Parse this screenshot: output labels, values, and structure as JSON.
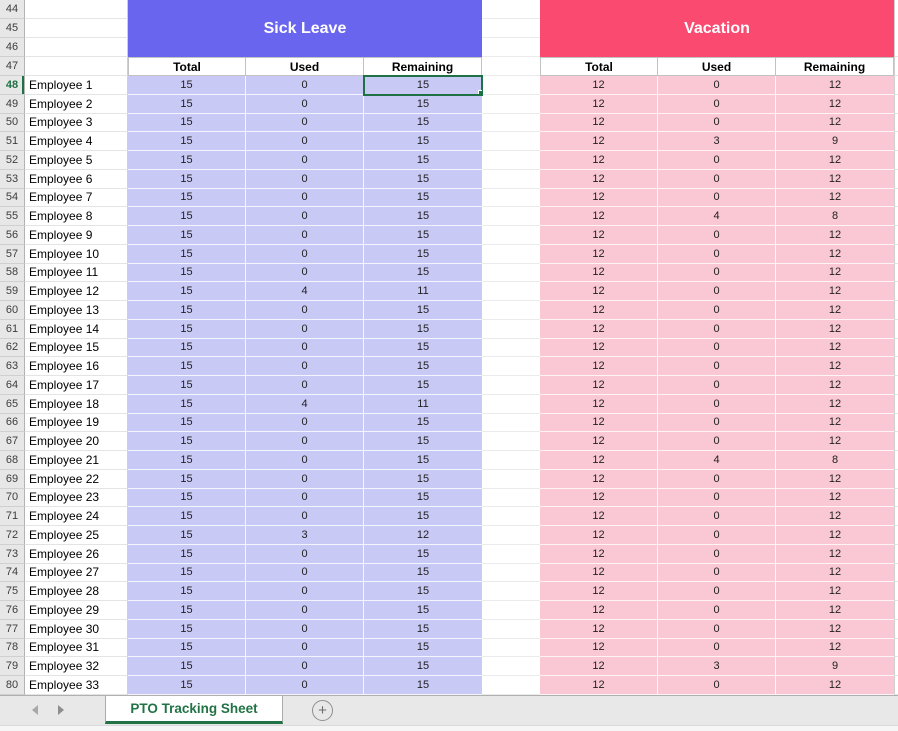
{
  "sheet": {
    "top_row_numbers": [
      "44",
      "45",
      "46"
    ],
    "header_row_number": "47",
    "sections": [
      {
        "title": "Sick Leave"
      },
      {
        "title": "Vacation"
      }
    ],
    "column_headers": [
      "Total",
      "Used",
      "Remaining"
    ],
    "selected": {
      "row_number": 48,
      "column": "sick_remaining"
    },
    "rows": [
      {
        "row_number": 48,
        "name": "Employee 1",
        "sick": [
          15,
          0,
          15
        ],
        "vacation": [
          12,
          0,
          12
        ]
      },
      {
        "row_number": 49,
        "name": "Employee 2",
        "sick": [
          15,
          0,
          15
        ],
        "vacation": [
          12,
          0,
          12
        ]
      },
      {
        "row_number": 50,
        "name": "Employee 3",
        "sick": [
          15,
          0,
          15
        ],
        "vacation": [
          12,
          0,
          12
        ]
      },
      {
        "row_number": 51,
        "name": "Employee 4",
        "sick": [
          15,
          0,
          15
        ],
        "vacation": [
          12,
          3,
          9
        ]
      },
      {
        "row_number": 52,
        "name": "Employee 5",
        "sick": [
          15,
          0,
          15
        ],
        "vacation": [
          12,
          0,
          12
        ]
      },
      {
        "row_number": 53,
        "name": "Employee 6",
        "sick": [
          15,
          0,
          15
        ],
        "vacation": [
          12,
          0,
          12
        ]
      },
      {
        "row_number": 54,
        "name": "Employee 7",
        "sick": [
          15,
          0,
          15
        ],
        "vacation": [
          12,
          0,
          12
        ]
      },
      {
        "row_number": 55,
        "name": "Employee 8",
        "sick": [
          15,
          0,
          15
        ],
        "vacation": [
          12,
          4,
          8
        ]
      },
      {
        "row_number": 56,
        "name": "Employee 9",
        "sick": [
          15,
          0,
          15
        ],
        "vacation": [
          12,
          0,
          12
        ]
      },
      {
        "row_number": 57,
        "name": "Employee 10",
        "sick": [
          15,
          0,
          15
        ],
        "vacation": [
          12,
          0,
          12
        ]
      },
      {
        "row_number": 58,
        "name": "Employee 11",
        "sick": [
          15,
          0,
          15
        ],
        "vacation": [
          12,
          0,
          12
        ]
      },
      {
        "row_number": 59,
        "name": "Employee 12",
        "sick": [
          15,
          4,
          11
        ],
        "vacation": [
          12,
          0,
          12
        ]
      },
      {
        "row_number": 60,
        "name": "Employee 13",
        "sick": [
          15,
          0,
          15
        ],
        "vacation": [
          12,
          0,
          12
        ]
      },
      {
        "row_number": 61,
        "name": "Employee 14",
        "sick": [
          15,
          0,
          15
        ],
        "vacation": [
          12,
          0,
          12
        ]
      },
      {
        "row_number": 62,
        "name": "Employee 15",
        "sick": [
          15,
          0,
          15
        ],
        "vacation": [
          12,
          0,
          12
        ]
      },
      {
        "row_number": 63,
        "name": "Employee 16",
        "sick": [
          15,
          0,
          15
        ],
        "vacation": [
          12,
          0,
          12
        ]
      },
      {
        "row_number": 64,
        "name": "Employee 17",
        "sick": [
          15,
          0,
          15
        ],
        "vacation": [
          12,
          0,
          12
        ]
      },
      {
        "row_number": 65,
        "name": "Employee 18",
        "sick": [
          15,
          4,
          11
        ],
        "vacation": [
          12,
          0,
          12
        ]
      },
      {
        "row_number": 66,
        "name": "Employee 19",
        "sick": [
          15,
          0,
          15
        ],
        "vacation": [
          12,
          0,
          12
        ]
      },
      {
        "row_number": 67,
        "name": "Employee 20",
        "sick": [
          15,
          0,
          15
        ],
        "vacation": [
          12,
          0,
          12
        ]
      },
      {
        "row_number": 68,
        "name": "Employee 21",
        "sick": [
          15,
          0,
          15
        ],
        "vacation": [
          12,
          4,
          8
        ]
      },
      {
        "row_number": 69,
        "name": "Employee 22",
        "sick": [
          15,
          0,
          15
        ],
        "vacation": [
          12,
          0,
          12
        ]
      },
      {
        "row_number": 70,
        "name": "Employee 23",
        "sick": [
          15,
          0,
          15
        ],
        "vacation": [
          12,
          0,
          12
        ]
      },
      {
        "row_number": 71,
        "name": "Employee 24",
        "sick": [
          15,
          0,
          15
        ],
        "vacation": [
          12,
          0,
          12
        ]
      },
      {
        "row_number": 72,
        "name": "Employee 25",
        "sick": [
          15,
          3,
          12
        ],
        "vacation": [
          12,
          0,
          12
        ]
      },
      {
        "row_number": 73,
        "name": "Employee 26",
        "sick": [
          15,
          0,
          15
        ],
        "vacation": [
          12,
          0,
          12
        ]
      },
      {
        "row_number": 74,
        "name": "Employee 27",
        "sick": [
          15,
          0,
          15
        ],
        "vacation": [
          12,
          0,
          12
        ]
      },
      {
        "row_number": 75,
        "name": "Employee 28",
        "sick": [
          15,
          0,
          15
        ],
        "vacation": [
          12,
          0,
          12
        ]
      },
      {
        "row_number": 76,
        "name": "Employee 29",
        "sick": [
          15,
          0,
          15
        ],
        "vacation": [
          12,
          0,
          12
        ]
      },
      {
        "row_number": 77,
        "name": "Employee 30",
        "sick": [
          15,
          0,
          15
        ],
        "vacation": [
          12,
          0,
          12
        ]
      },
      {
        "row_number": 78,
        "name": "Employee 31",
        "sick": [
          15,
          0,
          15
        ],
        "vacation": [
          12,
          0,
          12
        ]
      },
      {
        "row_number": 79,
        "name": "Employee 32",
        "sick": [
          15,
          0,
          15
        ],
        "vacation": [
          12,
          3,
          9
        ]
      },
      {
        "row_number": 80,
        "name": "Employee 33",
        "sick": [
          15,
          0,
          15
        ],
        "vacation": [
          12,
          0,
          12
        ]
      }
    ]
  },
  "tab_bar": {
    "active_tab": "PTO Tracking Sheet",
    "add_sheet_icon": "+"
  },
  "colors": {
    "sick_header_bg": "#6965ef",
    "sick_cell_bg": "#c9c9f6",
    "vacation_header_bg": "#fa4a70",
    "vacation_cell_bg": "#fac8d5",
    "selection_green": "#1e7145",
    "tab_green": "#217346"
  }
}
